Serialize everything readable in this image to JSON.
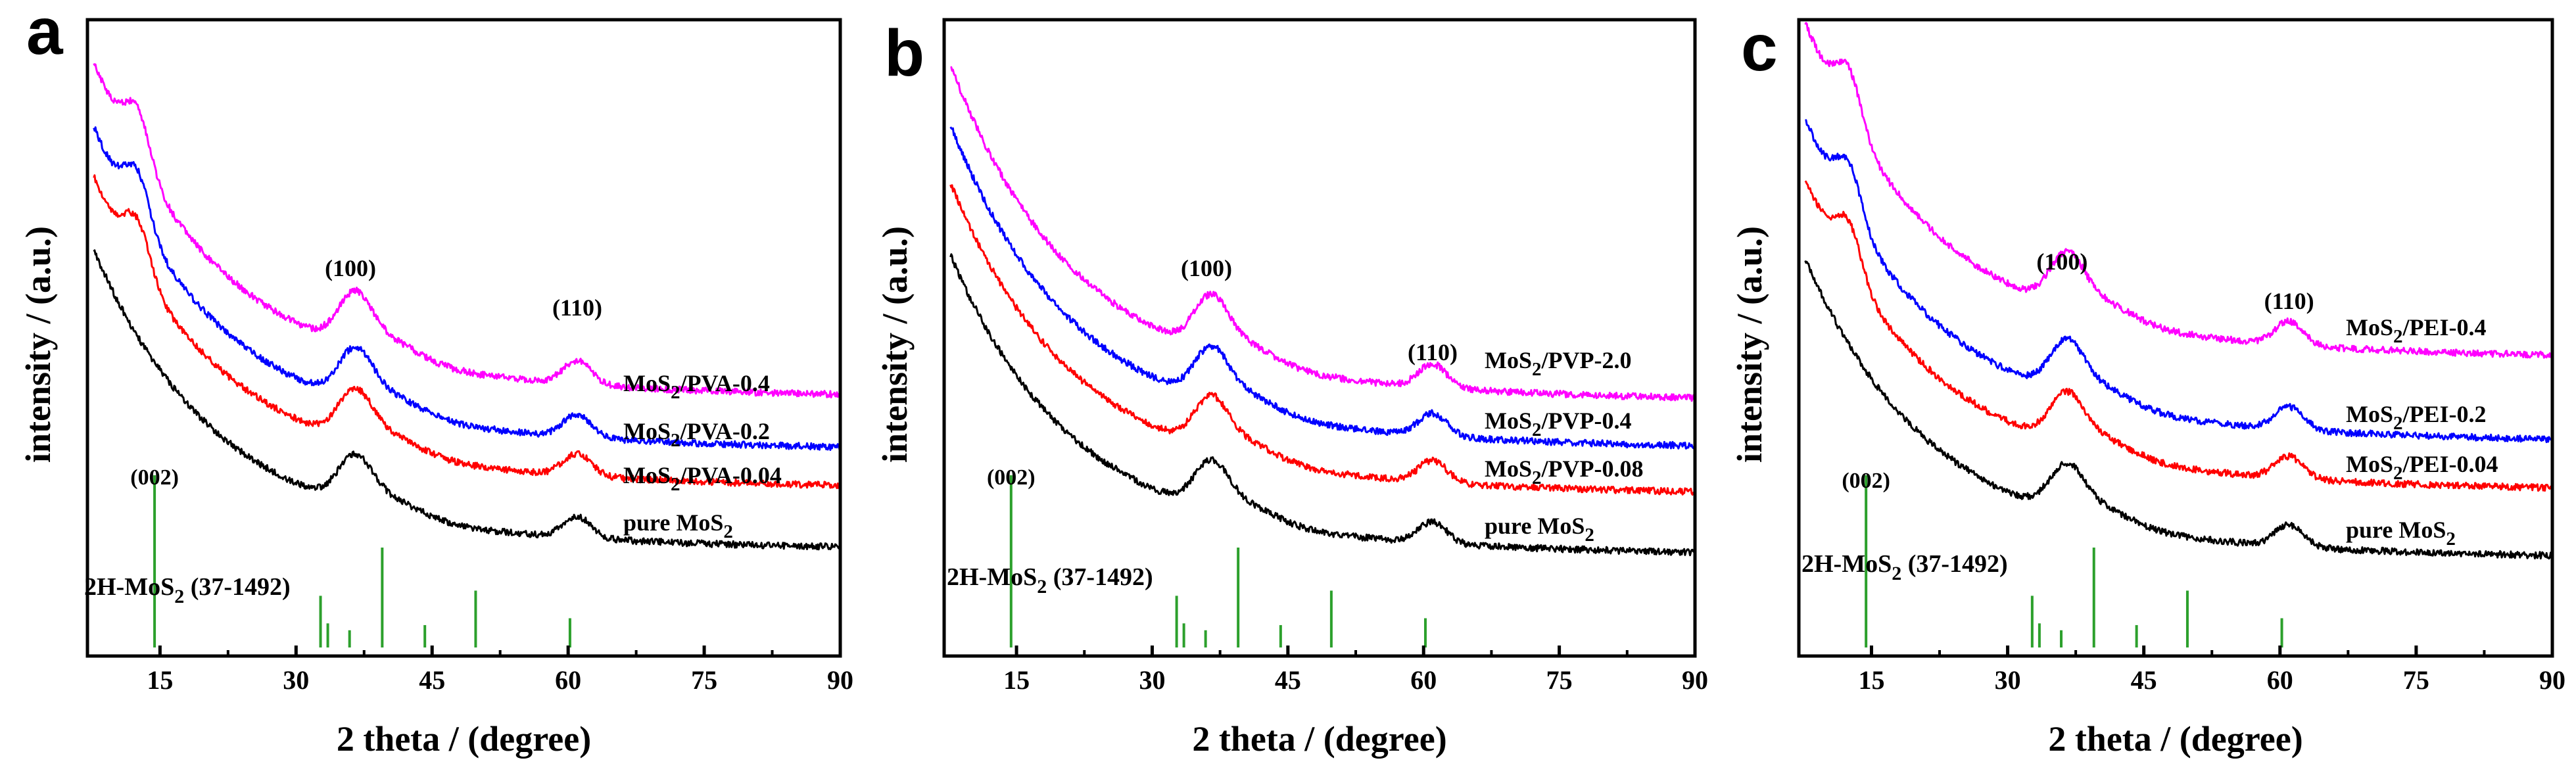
{
  "figure": {
    "panels": [
      {
        "id": "a",
        "letter": "a"
      },
      {
        "id": "b",
        "letter": "b"
      },
      {
        "id": "c",
        "letter": "c"
      }
    ]
  },
  "chart_data": [
    {
      "type": "line",
      "panel_label": "a",
      "xlabel": "2 theta / (degree)",
      "ylabel": "intensity / (a.u.)",
      "xlim": [
        7,
        90
      ],
      "xticks": [
        15,
        30,
        45,
        60,
        75,
        90
      ],
      "y_units": "arbitrary (curves vertically offset)",
      "peak_labels": [
        {
          "text": "(100)",
          "x": 36
        },
        {
          "text": "(110)",
          "x": 61
        }
      ],
      "series": [
        {
          "name": "pure MoS2",
          "label_text": "pure MoS",
          "label_sub": "2",
          "label_suffix": "",
          "color": "#000000",
          "offset": 0,
          "low_angle_peak": false
        },
        {
          "name": "MoS2/PVA-0.04",
          "label_text": "MoS",
          "label_sub": "2",
          "label_suffix": "/PVA-0.04",
          "color": "#ff0000",
          "offset": 1,
          "low_angle_peak": true
        },
        {
          "name": "MoS2/PVA-0.2",
          "label_text": "MoS",
          "label_sub": "2",
          "label_suffix": "/PVA-0.2",
          "color": "#0000ff",
          "offset": 2,
          "low_angle_peak": true
        },
        {
          "name": "MoS2/PVA-0.4",
          "label_text": "MoS",
          "label_sub": "2",
          "label_suffix": "/PVA-0.4",
          "color": "#ff00ff",
          "offset": 3,
          "low_angle_peak": true
        }
      ],
      "reference": {
        "label_text": "2H-MoS",
        "label_sub": "2",
        "label_suffix": " (37-1492)",
        "color": "#2ca02c",
        "first_peak_label": "(002)",
        "lines": [
          {
            "x": 14.4,
            "intensity": 100
          },
          {
            "x": 32.7,
            "intensity": 30
          },
          {
            "x": 33.5,
            "intensity": 14
          },
          {
            "x": 35.9,
            "intensity": 10
          },
          {
            "x": 39.5,
            "intensity": 58
          },
          {
            "x": 44.2,
            "intensity": 13
          },
          {
            "x": 49.8,
            "intensity": 33
          },
          {
            "x": 60.2,
            "intensity": 17
          }
        ]
      }
    },
    {
      "type": "line",
      "panel_label": "b",
      "xlabel": "2 theta / (degree)",
      "ylabel": "intensity / (a.u.)",
      "xlim": [
        7,
        90
      ],
      "xticks": [
        15,
        30,
        45,
        60,
        75,
        90
      ],
      "y_units": "arbitrary (curves vertically offset)",
      "peak_labels": [
        {
          "text": "(100)",
          "x": 36
        },
        {
          "text": "(110)",
          "x": 61
        }
      ],
      "series": [
        {
          "name": "pure MoS2",
          "label_text": "pure MoS",
          "label_sub": "2",
          "label_suffix": "",
          "color": "#000000",
          "offset": 0,
          "low_angle_peak": false
        },
        {
          "name": "MoS2/PVP-0.08",
          "label_text": "MoS",
          "label_sub": "2",
          "label_suffix": "/PVP-0.08",
          "color": "#ff0000",
          "offset": 1,
          "low_angle_peak": false
        },
        {
          "name": "MoS2/PVP-0.4",
          "label_text": "MoS",
          "label_sub": "2",
          "label_suffix": "/PVP-0.4",
          "color": "#0000ff",
          "offset": 2,
          "low_angle_peak": false
        },
        {
          "name": "MoS2/PVP-2.0",
          "label_text": "MoS",
          "label_sub": "2",
          "label_suffix": "/PVP-2.0",
          "color": "#ff00ff",
          "offset": 3,
          "low_angle_peak": false
        }
      ],
      "reference": {
        "label_text": "2H-MoS",
        "label_sub": "2",
        "label_suffix": " (37-1492)",
        "color": "#2ca02c",
        "first_peak_label": "(002)",
        "lines": [
          {
            "x": 14.4,
            "intensity": 100
          },
          {
            "x": 32.7,
            "intensity": 30
          },
          {
            "x": 33.5,
            "intensity": 14
          },
          {
            "x": 35.9,
            "intensity": 10
          },
          {
            "x": 39.5,
            "intensity": 58
          },
          {
            "x": 44.2,
            "intensity": 13
          },
          {
            "x": 49.8,
            "intensity": 33
          },
          {
            "x": 60.2,
            "intensity": 17
          }
        ]
      }
    },
    {
      "type": "line",
      "panel_label": "c",
      "xlabel": "2 theta / (degree)",
      "ylabel": "intensity / (a.u.)",
      "xlim": [
        7,
        90
      ],
      "xticks": [
        15,
        30,
        45,
        60,
        75,
        90
      ],
      "y_units": "arbitrary (curves vertically offset)",
      "peak_labels": [
        {
          "text": "(100)",
          "x": 36
        },
        {
          "text": "(110)",
          "x": 61
        }
      ],
      "series": [
        {
          "name": "pure MoS2",
          "label_text": "pure MoS",
          "label_sub": "2",
          "label_suffix": "",
          "color": "#000000",
          "offset": 0,
          "low_angle_peak": false
        },
        {
          "name": "MoS2/PEI-0.04",
          "label_text": "MoS",
          "label_sub": "2",
          "label_suffix": "/PEI-0.04",
          "color": "#ff0000",
          "offset": 1,
          "low_angle_peak": true
        },
        {
          "name": "MoS2/PEI-0.2",
          "label_text": "MoS",
          "label_sub": "2",
          "label_suffix": "/PEI-0.2",
          "color": "#0000ff",
          "offset": 2,
          "low_angle_peak": true
        },
        {
          "name": "MoS2/PEI-0.4",
          "label_text": "MoS",
          "label_sub": "2",
          "label_suffix": "/PEI-0.4",
          "color": "#ff00ff",
          "offset": 3,
          "low_angle_peak": true
        }
      ],
      "reference": {
        "label_text": "2H-MoS",
        "label_sub": "2",
        "label_suffix": " (37-1492)",
        "color": "#2ca02c",
        "first_peak_label": "(002)",
        "lines": [
          {
            "x": 14.4,
            "intensity": 100
          },
          {
            "x": 32.7,
            "intensity": 30
          },
          {
            "x": 33.5,
            "intensity": 14
          },
          {
            "x": 35.9,
            "intensity": 10
          },
          {
            "x": 39.5,
            "intensity": 58
          },
          {
            "x": 44.2,
            "intensity": 13
          },
          {
            "x": 49.8,
            "intensity": 33
          },
          {
            "x": 60.2,
            "intensity": 17
          }
        ]
      }
    }
  ]
}
